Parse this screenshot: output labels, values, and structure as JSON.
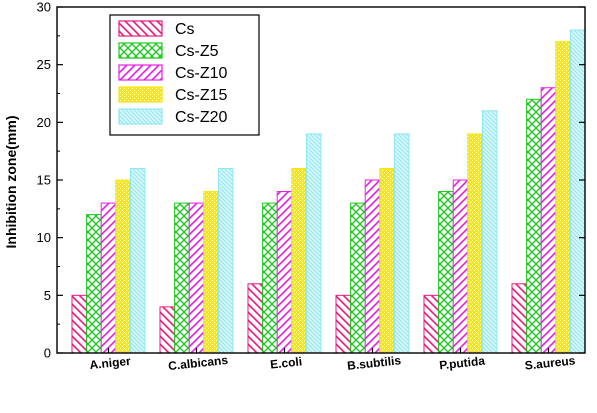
{
  "chart_data": {
    "type": "bar",
    "title": "",
    "xlabel": "",
    "ylabel": "Inhibition zone(mm)",
    "ylim": [
      0,
      30
    ],
    "yticks": [
      0,
      5,
      10,
      15,
      20,
      25,
      30
    ],
    "grid": false,
    "legend_position": "top-left",
    "categories": [
      "A.niger",
      "C.albicans",
      "E.coli",
      "B.subtilis",
      "P.putida",
      "S.aureus"
    ],
    "series": [
      {
        "name": "Cs",
        "values": [
          5,
          4,
          6,
          5,
          5,
          6
        ],
        "color": "#e8197d",
        "pattern": "diag-back"
      },
      {
        "name": "Cs-Z5",
        "values": [
          12,
          13,
          13,
          13,
          14,
          22
        ],
        "color": "#1ec81e",
        "pattern": "cross"
      },
      {
        "name": "Cs-Z10",
        "values": [
          13,
          13,
          14,
          15,
          15,
          23
        ],
        "color": "#e61ee6",
        "pattern": "diag-fwd"
      },
      {
        "name": "Cs-Z15",
        "values": [
          15,
          14,
          16,
          16,
          19,
          27
        ],
        "color": "#f5e614",
        "pattern": "dots"
      },
      {
        "name": "Cs-Z20",
        "values": [
          16,
          16,
          19,
          19,
          21,
          28
        ],
        "color": "#8ce6f0",
        "pattern": "hatch-fine"
      }
    ]
  }
}
